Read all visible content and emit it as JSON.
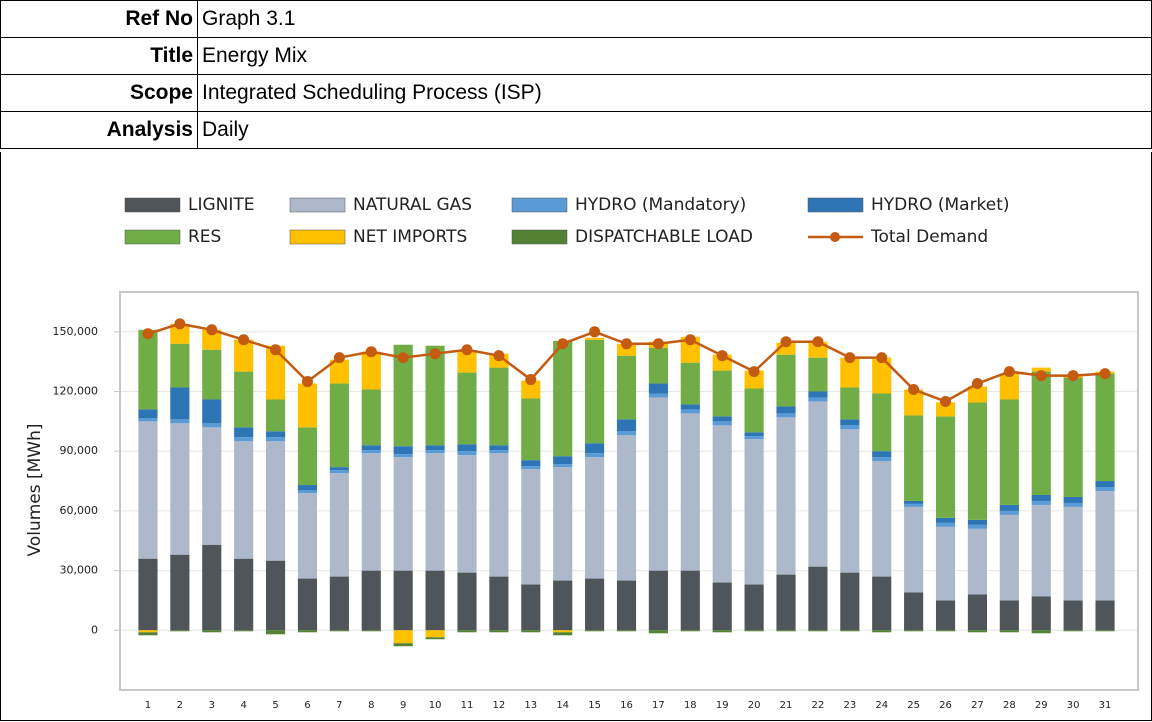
{
  "header": {
    "rows": [
      [
        "Ref No",
        "Graph 3.1"
      ],
      [
        "Title",
        "Energy Mix"
      ],
      [
        "Scope",
        "Integrated Scheduling Process (ISP)"
      ],
      [
        "Analysis",
        "Daily"
      ]
    ]
  },
  "chart_data": {
    "type": "stacked-bar",
    "y_label": "Volumes [MWh]",
    "categories": [
      "1",
      "2",
      "3",
      "4",
      "5",
      "6",
      "7",
      "8",
      "9",
      "10",
      "11",
      "12",
      "13",
      "14",
      "15",
      "16",
      "17",
      "18",
      "19",
      "20",
      "21",
      "22",
      "23",
      "24",
      "25",
      "26",
      "27",
      "28",
      "29",
      "30",
      "31"
    ],
    "ylim": [
      -30000,
      170000
    ],
    "yticks": [
      0,
      {
        "value": 30000,
        "label": "30,000"
      },
      {
        "value": 60000,
        "label": "60,000"
      },
      {
        "value": 90000,
        "label": "90,000"
      },
      {
        "value": 120000,
        "label": "120,000"
      },
      {
        "value": 150000,
        "label": "150,000"
      }
    ],
    "grid": true,
    "legend": "top",
    "series": [
      {
        "name": "LIGNITE",
        "color": "#4f5558",
        "values": [
          36000,
          38000,
          43000,
          36000,
          35000,
          26000,
          27000,
          30000,
          30000,
          30000,
          29000,
          27000,
          23000,
          25000,
          26000,
          25000,
          30000,
          30000,
          24000,
          23000,
          28000,
          32000,
          29000,
          27000,
          19000,
          15000,
          18000,
          15000,
          17000,
          15000,
          15000
        ]
      },
      {
        "name": "NATURAL GAS",
        "color": "#adb9ca",
        "values": [
          69000,
          66000,
          59000,
          59000,
          60000,
          43000,
          52000,
          59000,
          57000,
          59000,
          59000,
          62000,
          58000,
          57000,
          61000,
          73000,
          87000,
          79000,
          79000,
          73000,
          79000,
          83000,
          72000,
          58000,
          43000,
          37000,
          33000,
          43000,
          46000,
          47000,
          55000
        ]
      },
      {
        "name": "HYDRO (Mandatory)",
        "color": "#5b9bd5",
        "values": [
          1500,
          2000,
          2000,
          2000,
          2000,
          1500,
          1500,
          1500,
          1500,
          1500,
          2000,
          1500,
          1500,
          1500,
          2000,
          2000,
          2000,
          2000,
          2000,
          1500,
          2000,
          2000,
          2000,
          2000,
          1500,
          2000,
          2000,
          2000,
          2000,
          2000,
          2000
        ]
      },
      {
        "name": "HYDRO (Market)",
        "color": "#2e75b6",
        "values": [
          4500,
          16000,
          12000,
          5000,
          3000,
          2500,
          1500,
          2500,
          4000,
          2500,
          3500,
          2500,
          3000,
          4000,
          5000,
          6000,
          5000,
          2500,
          2500,
          2000,
          3500,
          3000,
          3000,
          3000,
          1500,
          2500,
          2500,
          3000,
          3000,
          3000,
          3000
        ]
      },
      {
        "name": "RES",
        "color": "#70ad47",
        "values": [
          40000,
          22000,
          25000,
          28000,
          16000,
          29000,
          42000,
          28000,
          51000,
          50000,
          36000,
          39000,
          31000,
          58000,
          52000,
          32000,
          18000,
          21000,
          23000,
          22000,
          26000,
          17000,
          16000,
          29000,
          43000,
          51000,
          59000,
          53000,
          62000,
          60000,
          54000
        ]
      },
      {
        "name": "NET IMPORTS",
        "color": "#ffc000",
        "values": [
          -1000,
          10000,
          10000,
          16000,
          27000,
          22000,
          12000,
          19000,
          -6500,
          -3500,
          11000,
          7000,
          9000,
          -1000,
          1000,
          6000,
          3000,
          13000,
          8000,
          9000,
          6000,
          8000,
          15000,
          18000,
          13000,
          7000,
          8000,
          13000,
          2000,
          1000,
          1000
        ]
      },
      {
        "name": "DISPATCHABLE LOAD",
        "color": "#548235",
        "values": [
          -1500,
          -500,
          -1000,
          -500,
          -2000,
          -1000,
          -500,
          -500,
          -1500,
          -1000,
          -1000,
          -1000,
          -1000,
          -1500,
          -500,
          -500,
          -1500,
          -500,
          -1000,
          -500,
          -500,
          -500,
          -500,
          -1000,
          -500,
          -500,
          -1000,
          -1000,
          -1500,
          -500,
          -500
        ]
      },
      {
        "name": "Total Demand",
        "color": "#c55a11",
        "type": "line",
        "values": [
          149000,
          154000,
          151000,
          146000,
          141000,
          125000,
          137000,
          140000,
          137000,
          139000,
          141000,
          138000,
          126000,
          144000,
          150000,
          144000,
          144000,
          146000,
          138000,
          130000,
          145000,
          145000,
          137000,
          137000,
          121000,
          115000,
          124000,
          130000,
          128000,
          128000,
          129000
        ]
      }
    ]
  }
}
